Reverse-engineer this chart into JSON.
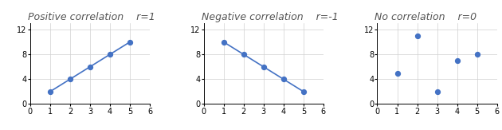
{
  "plots": [
    {
      "title": "Positive correlation",
      "r_label": "r=1",
      "x": [
        1,
        2,
        3,
        4,
        5
      ],
      "y": [
        2,
        4,
        6,
        8,
        10
      ],
      "xlim": [
        0,
        6
      ],
      "ylim": [
        0,
        13
      ],
      "xticks": [
        0,
        1,
        2,
        3,
        4,
        5,
        6
      ],
      "yticks": [
        0,
        4,
        8,
        12
      ],
      "line": true
    },
    {
      "title": "Negative correlation",
      "r_label": "r=-1",
      "x": [
        1,
        2,
        3,
        4,
        5
      ],
      "y": [
        10,
        8,
        6,
        4,
        2
      ],
      "xlim": [
        0,
        6
      ],
      "ylim": [
        0,
        13
      ],
      "xticks": [
        0,
        1,
        2,
        3,
        4,
        5,
        6
      ],
      "yticks": [
        0,
        4,
        8,
        12
      ],
      "line": true
    },
    {
      "title": "No correlation",
      "r_label": "r=0",
      "x": [
        1,
        2,
        3,
        4,
        5
      ],
      "y": [
        5,
        11,
        2,
        7,
        8
      ],
      "xlim": [
        0,
        6
      ],
      "ylim": [
        0,
        13
      ],
      "xticks": [
        0,
        1,
        2,
        3,
        4,
        5,
        6
      ],
      "yticks": [
        0,
        4,
        8,
        12
      ],
      "line": false
    }
  ],
  "dot_color": "#4472C4",
  "line_color": "#4472C4",
  "bg_color": "#ffffff",
  "title_fontsize": 9,
  "tick_fontsize": 7,
  "dot_size": 18,
  "line_width": 1.2,
  "grid_color": "#d0d0d0",
  "title_gap": "    "
}
